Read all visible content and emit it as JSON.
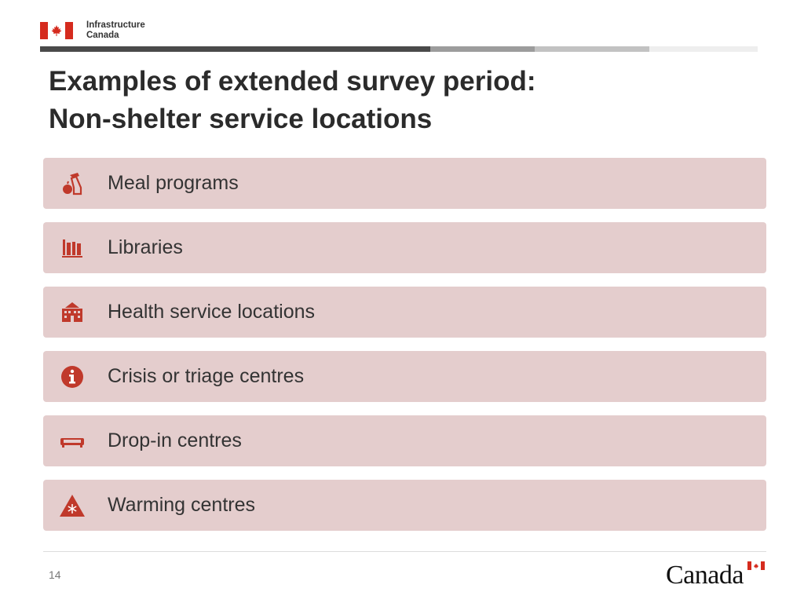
{
  "header": {
    "department_line1": "Infrastructure",
    "department_line2": "Canada"
  },
  "slide": {
    "title_line1": "Examples of extended survey period:",
    "title_line2": "Non-shelter service locations",
    "items": [
      {
        "label": "Meal programs",
        "icon": "meal-icon"
      },
      {
        "label": "Libraries",
        "icon": "library-books-icon"
      },
      {
        "label": "Health service locations",
        "icon": "hospital-icon"
      },
      {
        "label": "Crisis or triage centres",
        "icon": "info-icon"
      },
      {
        "label": "Drop-in centres",
        "icon": "sofa-icon"
      },
      {
        "label": "Warming centres",
        "icon": "snowflake-warning-icon"
      }
    ],
    "accent_color": "#c0392b",
    "item_background": "#e4cdcd"
  },
  "footer": {
    "page_number": "14",
    "wordmark": "Canada"
  }
}
